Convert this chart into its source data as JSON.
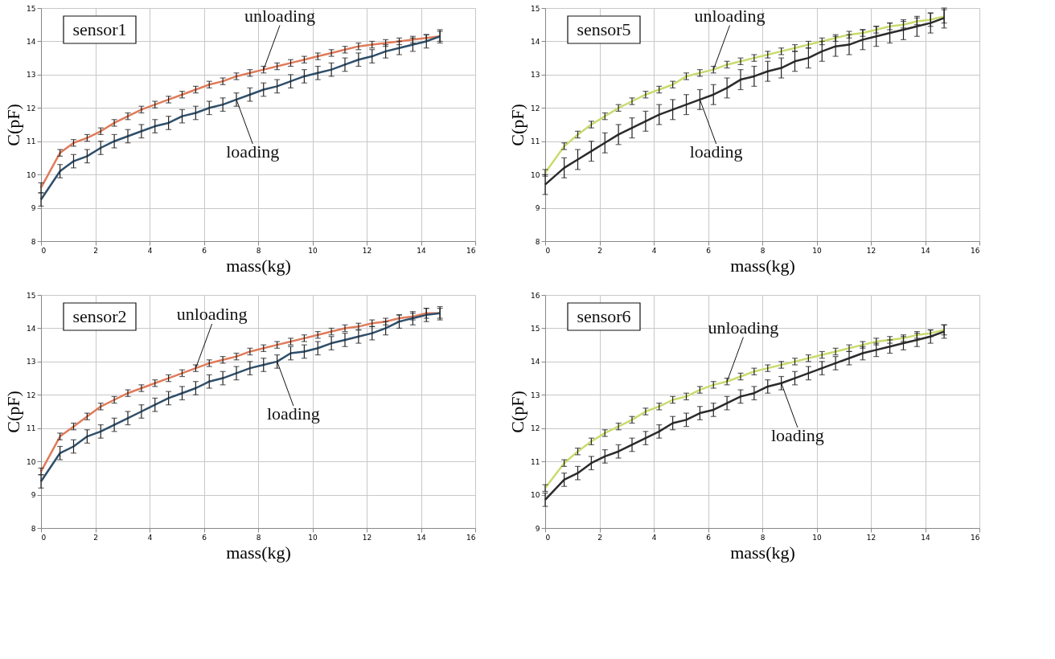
{
  "chart_data": [
    {
      "type": "line",
      "title": "sensor1",
      "xlabel": "mass(kg)",
      "ylabel": "C(pF)",
      "xlim": [
        0,
        16
      ],
      "xticks": [
        0,
        2,
        4,
        6,
        8,
        10,
        12,
        14,
        16
      ],
      "ylim": [
        8,
        15
      ],
      "yticks": [
        8,
        9,
        10,
        11,
        12,
        13,
        14,
        15
      ],
      "grid": true,
      "legend": false,
      "marker": "none",
      "line_style": "solid",
      "x": [
        0,
        0.7,
        1.2,
        1.7,
        2.2,
        2.7,
        3.2,
        3.7,
        4.2,
        4.7,
        5.2,
        5.7,
        6.2,
        6.7,
        7.2,
        7.7,
        8.2,
        8.7,
        9.2,
        9.7,
        10.2,
        10.7,
        11.2,
        11.7,
        12.2,
        12.7,
        13.2,
        13.7,
        14.2,
        14.7
      ],
      "series": [
        {
          "name": "unloading",
          "color": "#e07b5a",
          "values": [
            9.6,
            10.65,
            10.95,
            11.1,
            11.3,
            11.55,
            11.75,
            11.95,
            12.1,
            12.25,
            12.4,
            12.55,
            12.7,
            12.8,
            12.95,
            13.05,
            13.15,
            13.25,
            13.35,
            13.45,
            13.55,
            13.65,
            13.75,
            13.85,
            13.9,
            13.95,
            14.0,
            14.05,
            14.1,
            14.15
          ],
          "errors": [
            0.15,
            0.1,
            0.1,
            0.1,
            0.1,
            0.1,
            0.1,
            0.1,
            0.1,
            0.1,
            0.1,
            0.1,
            0.1,
            0.1,
            0.1,
            0.1,
            0.1,
            0.1,
            0.1,
            0.1,
            0.1,
            0.1,
            0.1,
            0.1,
            0.1,
            0.1,
            0.1,
            0.1,
            0.1,
            0.15
          ]
        },
        {
          "name": "loading",
          "color": "#2f4f6a",
          "values": [
            9.25,
            10.1,
            10.4,
            10.55,
            10.8,
            11.0,
            11.15,
            11.3,
            11.45,
            11.55,
            11.75,
            11.85,
            12.0,
            12.1,
            12.25,
            12.4,
            12.55,
            12.65,
            12.8,
            12.95,
            13.05,
            13.15,
            13.3,
            13.45,
            13.55,
            13.7,
            13.8,
            13.9,
            14.0,
            14.15
          ],
          "errors": [
            0.2,
            0.2,
            0.2,
            0.2,
            0.2,
            0.2,
            0.2,
            0.2,
            0.2,
            0.2,
            0.2,
            0.2,
            0.2,
            0.2,
            0.2,
            0.2,
            0.2,
            0.2,
            0.2,
            0.2,
            0.2,
            0.2,
            0.2,
            0.2,
            0.2,
            0.2,
            0.2,
            0.2,
            0.2,
            0.2
          ]
        }
      ]
    },
    {
      "type": "line",
      "title": "sensor5",
      "xlabel": "mass(kg)",
      "ylabel": "C(pF)",
      "xlim": [
        0,
        16
      ],
      "xticks": [
        0,
        2,
        4,
        6,
        8,
        10,
        12,
        14,
        16
      ],
      "ylim": [
        8,
        15
      ],
      "yticks": [
        8,
        9,
        10,
        11,
        12,
        13,
        14,
        15
      ],
      "grid": true,
      "legend": false,
      "marker": "none",
      "line_style": "solid",
      "x": [
        0,
        0.7,
        1.2,
        1.7,
        2.2,
        2.7,
        3.2,
        3.7,
        4.2,
        4.7,
        5.2,
        5.7,
        6.2,
        6.7,
        7.2,
        7.7,
        8.2,
        8.7,
        9.2,
        9.7,
        10.2,
        10.7,
        11.2,
        11.7,
        12.2,
        12.7,
        13.2,
        13.7,
        14.2,
        14.7
      ],
      "series": [
        {
          "name": "unloading",
          "color": "#c8dc6e",
          "values": [
            10.05,
            10.85,
            11.2,
            11.5,
            11.75,
            12.0,
            12.2,
            12.4,
            12.55,
            12.7,
            12.95,
            13.05,
            13.15,
            13.3,
            13.4,
            13.5,
            13.6,
            13.7,
            13.8,
            13.9,
            14.0,
            14.1,
            14.2,
            14.25,
            14.35,
            14.45,
            14.5,
            14.6,
            14.65,
            14.75
          ],
          "errors": [
            0.1,
            0.1,
            0.1,
            0.1,
            0.1,
            0.1,
            0.1,
            0.1,
            0.1,
            0.1,
            0.1,
            0.1,
            0.1,
            0.1,
            0.1,
            0.1,
            0.1,
            0.1,
            0.1,
            0.1,
            0.1,
            0.1,
            0.1,
            0.1,
            0.1,
            0.1,
            0.1,
            0.1,
            0.2,
            0.2
          ]
        },
        {
          "name": "loading",
          "color": "#2b2b2b",
          "values": [
            9.7,
            10.2,
            10.45,
            10.7,
            10.95,
            11.2,
            11.4,
            11.6,
            11.8,
            11.95,
            12.1,
            12.25,
            12.4,
            12.6,
            12.85,
            12.95,
            13.1,
            13.2,
            13.4,
            13.5,
            13.7,
            13.85,
            13.9,
            14.05,
            14.15,
            14.25,
            14.35,
            14.45,
            14.55,
            14.7
          ],
          "errors": [
            0.3,
            0.3,
            0.3,
            0.3,
            0.3,
            0.3,
            0.3,
            0.3,
            0.3,
            0.3,
            0.3,
            0.3,
            0.3,
            0.3,
            0.3,
            0.3,
            0.3,
            0.3,
            0.3,
            0.3,
            0.3,
            0.3,
            0.3,
            0.3,
            0.3,
            0.3,
            0.3,
            0.3,
            0.3,
            0.3
          ]
        }
      ]
    },
    {
      "type": "line",
      "title": "sensor2",
      "xlabel": "mass(kg)",
      "ylabel": "C(pF)",
      "xlim": [
        0,
        16
      ],
      "xticks": [
        0,
        2,
        4,
        6,
        8,
        10,
        12,
        14,
        16
      ],
      "ylim": [
        8,
        15
      ],
      "yticks": [
        8,
        9,
        10,
        11,
        12,
        13,
        14,
        15
      ],
      "grid": true,
      "legend": false,
      "marker": "none",
      "line_style": "solid",
      "x": [
        0,
        0.7,
        1.2,
        1.7,
        2.2,
        2.7,
        3.2,
        3.7,
        4.2,
        4.7,
        5.2,
        5.7,
        6.2,
        6.7,
        7.2,
        7.7,
        8.2,
        8.7,
        9.2,
        9.7,
        10.2,
        10.7,
        11.2,
        11.7,
        12.2,
        12.7,
        13.2,
        13.7,
        14.2,
        14.7
      ],
      "series": [
        {
          "name": "unloading",
          "color": "#e07b5a",
          "values": [
            9.7,
            10.75,
            11.05,
            11.35,
            11.65,
            11.85,
            12.05,
            12.2,
            12.35,
            12.5,
            12.65,
            12.8,
            12.95,
            13.05,
            13.15,
            13.3,
            13.4,
            13.5,
            13.6,
            13.7,
            13.8,
            13.9,
            14.0,
            14.05,
            14.15,
            14.2,
            14.3,
            14.35,
            14.45,
            14.45
          ],
          "errors": [
            0.1,
            0.1,
            0.1,
            0.1,
            0.1,
            0.1,
            0.1,
            0.1,
            0.1,
            0.1,
            0.1,
            0.1,
            0.1,
            0.1,
            0.1,
            0.1,
            0.1,
            0.1,
            0.1,
            0.1,
            0.1,
            0.1,
            0.1,
            0.1,
            0.1,
            0.1,
            0.1,
            0.1,
            0.15,
            0.15
          ]
        },
        {
          "name": "loading",
          "color": "#2f4f6a",
          "values": [
            9.4,
            10.25,
            10.45,
            10.75,
            10.9,
            11.1,
            11.3,
            11.5,
            11.7,
            11.9,
            12.05,
            12.2,
            12.4,
            12.5,
            12.65,
            12.8,
            12.9,
            13.0,
            13.25,
            13.3,
            13.4,
            13.55,
            13.65,
            13.75,
            13.85,
            14.0,
            14.2,
            14.3,
            14.4,
            14.45
          ],
          "errors": [
            0.2,
            0.2,
            0.2,
            0.2,
            0.2,
            0.2,
            0.2,
            0.2,
            0.2,
            0.2,
            0.2,
            0.2,
            0.2,
            0.2,
            0.2,
            0.2,
            0.2,
            0.2,
            0.2,
            0.2,
            0.2,
            0.2,
            0.2,
            0.2,
            0.2,
            0.2,
            0.2,
            0.2,
            0.2,
            0.2
          ]
        }
      ]
    },
    {
      "type": "line",
      "title": "sensor6",
      "xlabel": "mass(kg)",
      "ylabel": "C(pF)",
      "xlim": [
        0,
        16
      ],
      "xticks": [
        0,
        2,
        4,
        6,
        8,
        10,
        12,
        14,
        16
      ],
      "ylim": [
        9,
        16
      ],
      "yticks": [
        9,
        10,
        11,
        12,
        13,
        14,
        15,
        16
      ],
      "grid": true,
      "legend": false,
      "marker": "none",
      "line_style": "solid",
      "x": [
        0,
        0.7,
        1.2,
        1.7,
        2.2,
        2.7,
        3.2,
        3.7,
        4.2,
        4.7,
        5.2,
        5.7,
        6.2,
        6.7,
        7.2,
        7.7,
        8.2,
        8.7,
        9.2,
        9.7,
        10.2,
        10.7,
        11.2,
        11.7,
        12.2,
        12.7,
        13.2,
        13.7,
        14.2,
        14.7
      ],
      "series": [
        {
          "name": "unloading",
          "color": "#c8dc6e",
          "values": [
            10.2,
            10.95,
            11.3,
            11.6,
            11.85,
            12.05,
            12.25,
            12.5,
            12.65,
            12.85,
            12.95,
            13.15,
            13.3,
            13.4,
            13.55,
            13.7,
            13.8,
            13.9,
            14.0,
            14.1,
            14.2,
            14.3,
            14.4,
            14.5,
            14.6,
            14.65,
            14.7,
            14.8,
            14.85,
            14.95
          ],
          "errors": [
            0.1,
            0.1,
            0.1,
            0.1,
            0.1,
            0.1,
            0.1,
            0.1,
            0.1,
            0.1,
            0.1,
            0.1,
            0.1,
            0.1,
            0.1,
            0.1,
            0.1,
            0.1,
            0.1,
            0.1,
            0.1,
            0.1,
            0.1,
            0.1,
            0.1,
            0.1,
            0.1,
            0.1,
            0.1,
            0.15
          ]
        },
        {
          "name": "loading",
          "color": "#2b2b2b",
          "values": [
            9.85,
            10.45,
            10.65,
            10.95,
            11.15,
            11.3,
            11.5,
            11.7,
            11.9,
            12.15,
            12.25,
            12.45,
            12.55,
            12.75,
            12.95,
            13.05,
            13.25,
            13.35,
            13.5,
            13.65,
            13.8,
            13.95,
            14.1,
            14.25,
            14.35,
            14.45,
            14.55,
            14.65,
            14.75,
            14.9
          ],
          "errors": [
            0.2,
            0.2,
            0.2,
            0.2,
            0.2,
            0.2,
            0.2,
            0.2,
            0.2,
            0.2,
            0.2,
            0.2,
            0.2,
            0.2,
            0.2,
            0.2,
            0.2,
            0.2,
            0.2,
            0.2,
            0.2,
            0.2,
            0.2,
            0.2,
            0.2,
            0.2,
            0.2,
            0.2,
            0.2,
            0.2
          ]
        }
      ]
    }
  ]
}
